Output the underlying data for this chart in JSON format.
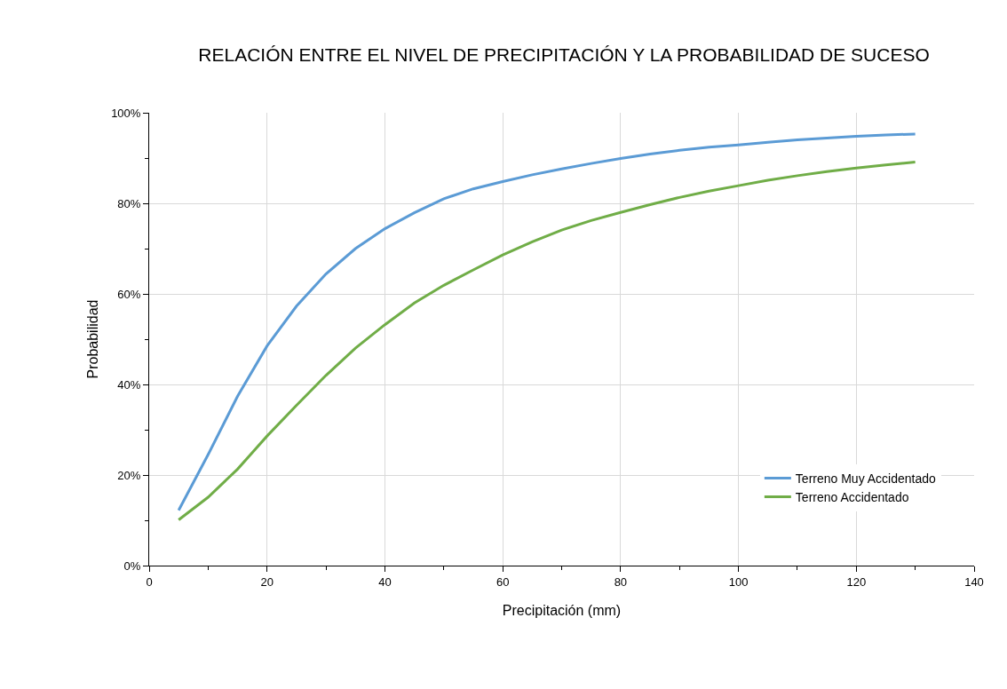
{
  "chart_data": {
    "type": "line",
    "title": "RELACIÓN ENTRE EL NIVEL DE PRECIPITACIÓN Y LA PROBABILIDAD DE SUCESO",
    "xlabel": "Precipitación (mm)",
    "ylabel": "Probabilidad",
    "x": [
      5,
      10,
      15,
      20,
      25,
      30,
      35,
      40,
      45,
      50,
      55,
      60,
      65,
      70,
      75,
      80,
      85,
      90,
      95,
      100,
      105,
      110,
      115,
      120,
      125,
      130
    ],
    "series": [
      {
        "name": "Terreno Muy Accidentado",
        "color": "#5b9bd5",
        "values": [
          12.2,
          24.5,
          37.4,
          48.5,
          57.3,
          64.4,
          70.0,
          74.4,
          77.9,
          81.0,
          83.2,
          84.8,
          86.3,
          87.6,
          88.8,
          89.9,
          90.9,
          91.7,
          92.4,
          92.9,
          93.5,
          94.0,
          94.4,
          94.8,
          95.1,
          95.3
        ]
      },
      {
        "name": "Terreno Accidentado",
        "color": "#70ad47",
        "values": [
          10.1,
          15.1,
          21.3,
          28.6,
          35.4,
          42.0,
          48.0,
          53.2,
          58.0,
          61.9,
          65.3,
          68.6,
          71.5,
          74.1,
          76.2,
          78.0,
          79.7,
          81.3,
          82.7,
          83.9,
          85.1,
          86.1,
          87.0,
          87.8,
          88.5,
          89.1
        ]
      }
    ],
    "xlim": [
      0,
      140
    ],
    "xticks": [
      0,
      {
        "value": 10,
        "label": null
      },
      20,
      {
        "value": 30,
        "label": null
      },
      40,
      {
        "value": 50,
        "label": null
      },
      60,
      {
        "value": 70,
        "label": null
      },
      80,
      {
        "value": 90,
        "label": null
      },
      100,
      {
        "value": 110,
        "label": null
      },
      120,
      {
        "value": 130,
        "label": null
      },
      140
    ],
    "ylim": [
      0,
      100
    ],
    "yticks": [
      {
        "value": 0,
        "label": "0%"
      },
      {
        "value": 10,
        "label": null
      },
      {
        "value": 20,
        "label": "20%"
      },
      {
        "value": 30,
        "label": null
      },
      {
        "value": 40,
        "label": "40%"
      },
      {
        "value": 50,
        "label": null
      },
      {
        "value": 60,
        "label": "60%"
      },
      {
        "value": 70,
        "label": null
      },
      {
        "value": 80,
        "label": "80%"
      },
      {
        "value": 90,
        "label": null
      },
      {
        "value": 100,
        "label": "100%"
      }
    ],
    "grid": true,
    "legend": "bottom right",
    "marker": "none",
    "line_style": "solid"
  }
}
